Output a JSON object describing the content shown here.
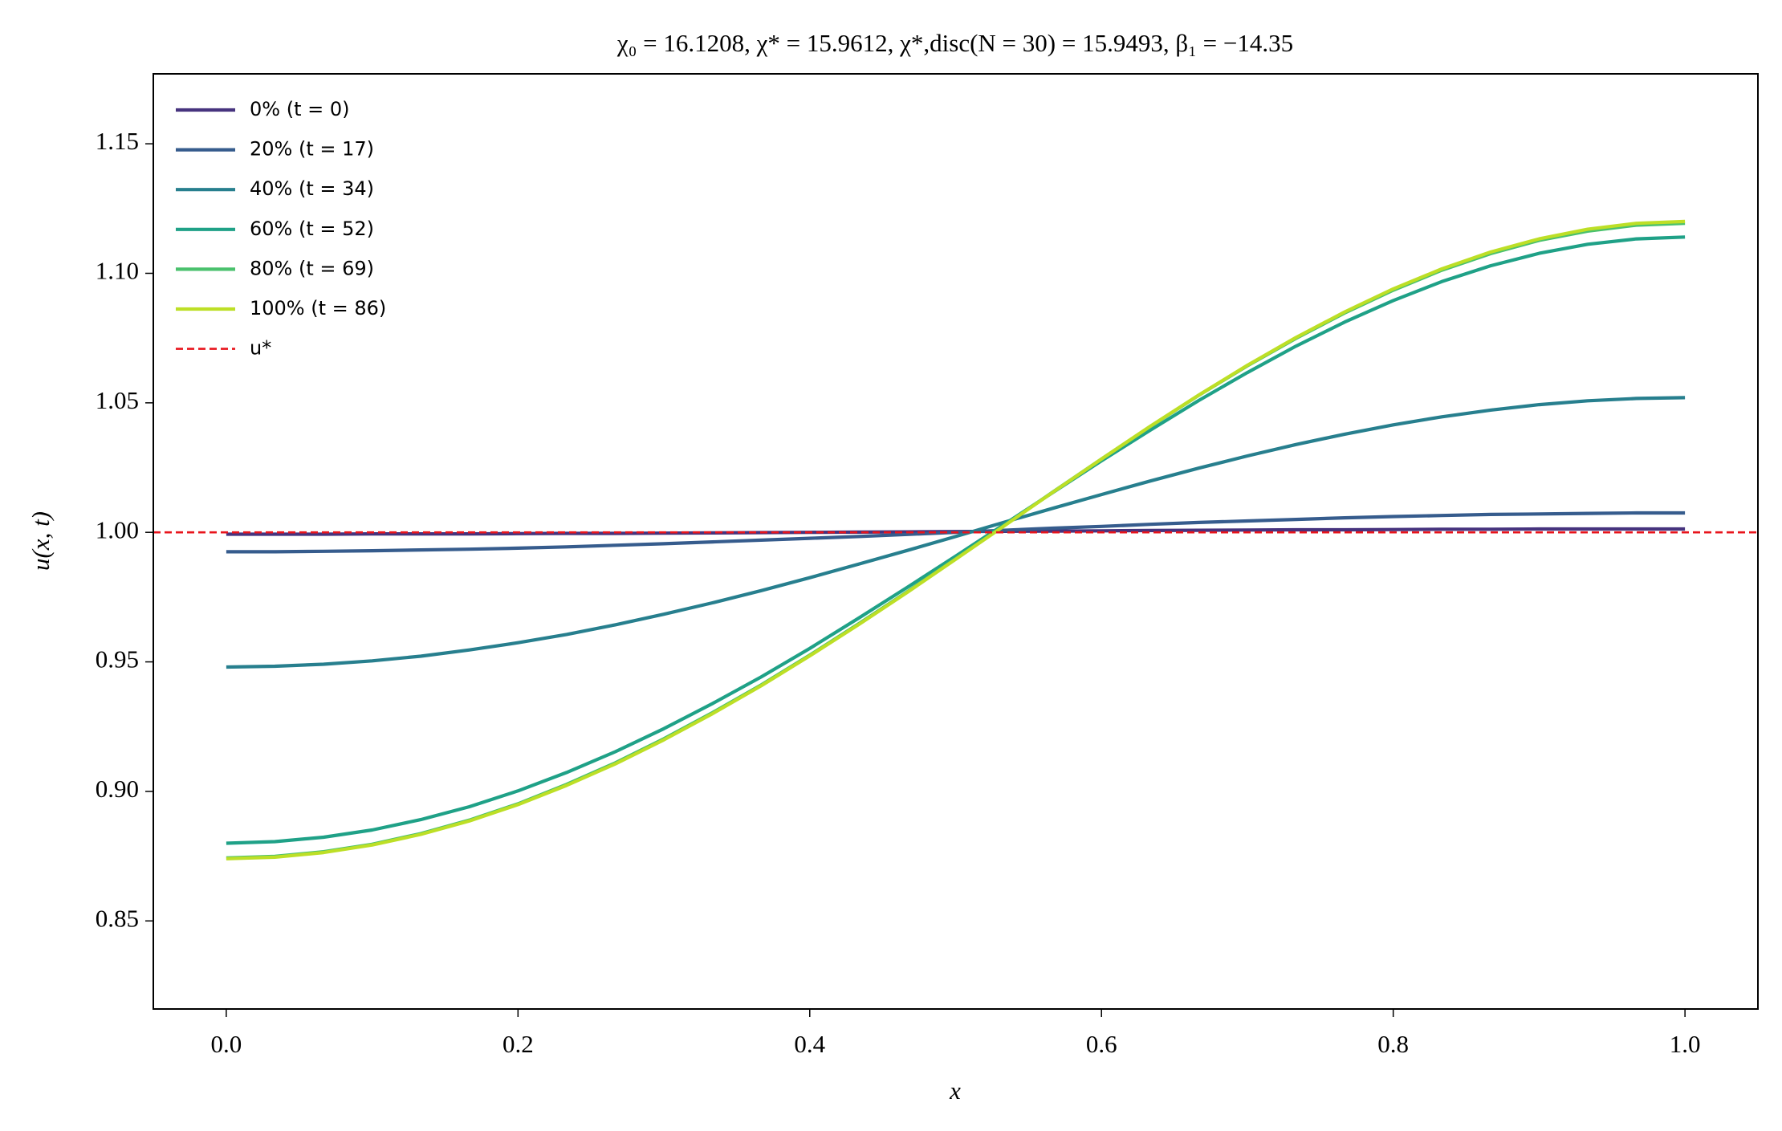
{
  "chart_data": {
    "type": "line",
    "title": "χ₀ = 16.1208,  χ* = 15.9612,  χ*,disc(N = 30) = 15.9493,  β₁ = −14.35",
    "x_label": "x",
    "y_label": "u(x, t)",
    "x": [
      0,
      0.0333,
      0.0667,
      0.1,
      0.1333,
      0.1667,
      0.2,
      0.2333,
      0.2667,
      0.3,
      0.3333,
      0.3667,
      0.4,
      0.4333,
      0.4667,
      0.5,
      0.5333,
      0.5667,
      0.6,
      0.6333,
      0.6667,
      0.7,
      0.7333,
      0.7667,
      0.8,
      0.8333,
      0.8667,
      0.9,
      0.9333,
      0.9667,
      1
    ],
    "series": [
      {
        "name": "0% (t = 0)",
        "color": "#46337e",
        "values": [
          0.9993,
          0.9993,
          0.9993,
          0.9994,
          0.9994,
          0.9994,
          0.9995,
          0.9996,
          0.9996,
          0.9997,
          0.9998,
          0.9999,
          1.0,
          1.0001,
          1.0002,
          1.0003,
          1.0004,
          1.0005,
          1.0006,
          1.0007,
          1.0008,
          1.0009,
          1.001,
          1.001,
          1.0011,
          1.0012,
          1.0012,
          1.0013,
          1.0013,
          1.0013,
          1.0013
        ]
      },
      {
        "name": "20% (t = 17)",
        "color": "#365c8d",
        "values": [
          0.9925,
          0.9925,
          0.9927,
          0.9929,
          0.9932,
          0.9935,
          0.9939,
          0.9944,
          0.995,
          0.9956,
          0.9963,
          0.997,
          0.9977,
          0.9984,
          0.9992,
          1.0,
          1.0008,
          1.0016,
          1.0023,
          1.0031,
          1.0038,
          1.0044,
          1.005,
          1.0056,
          1.0061,
          1.0065,
          1.0069,
          1.0071,
          1.0073,
          1.0075,
          1.0075
        ]
      },
      {
        "name": "40% (t = 34)",
        "color": "#277f8e",
        "values": [
          0.948,
          0.9483,
          0.9491,
          0.9504,
          0.9522,
          0.9546,
          0.9574,
          0.9606,
          0.9643,
          0.9684,
          0.9728,
          0.9775,
          0.9825,
          0.9877,
          0.993,
          0.9984,
          1.0039,
          1.0093,
          1.0146,
          1.0198,
          1.0248,
          1.0295,
          1.0339,
          1.0379,
          1.0415,
          1.0446,
          1.0472,
          1.0493,
          1.0508,
          1.0517,
          1.052
        ]
      },
      {
        "name": "60% (t = 52)",
        "color": "#1fa187",
        "values": [
          0.88,
          0.8806,
          0.8823,
          0.8851,
          0.8891,
          0.8941,
          0.9002,
          0.9073,
          0.9153,
          0.9242,
          0.9339,
          0.9442,
          0.9552,
          0.9668,
          0.9787,
          0.9908,
          1.0031,
          1.0154,
          1.0276,
          1.0394,
          1.0509,
          1.0617,
          1.0719,
          1.0812,
          1.0895,
          1.0968,
          1.1029,
          1.1077,
          1.1112,
          1.1133,
          1.114
        ]
      },
      {
        "name": "80% (t = 69)",
        "color": "#4ac16d",
        "values": [
          0.8743,
          0.8749,
          0.8767,
          0.8796,
          0.8837,
          0.8889,
          0.8952,
          0.9027,
          0.911,
          0.9203,
          0.9304,
          0.9411,
          0.9526,
          0.9646,
          0.977,
          0.9898,
          1.0026,
          1.0156,
          1.0283,
          1.0408,
          1.0529,
          1.0643,
          1.0749,
          1.0847,
          1.0935,
          1.1012,
          1.1076,
          1.1127,
          1.1163,
          1.1186,
          1.1193
        ]
      },
      {
        "name": "100% (t = 86)",
        "color": "#bddf26",
        "values": [
          0.874,
          0.8746,
          0.8764,
          0.8793,
          0.8834,
          0.8886,
          0.8949,
          0.9023,
          0.9106,
          0.9199,
          0.93,
          0.9408,
          0.9523,
          0.9643,
          0.9768,
          0.9896,
          1.0025,
          1.0155,
          1.0283,
          1.0409,
          1.053,
          1.0645,
          1.0752,
          1.0851,
          1.094,
          1.1017,
          1.1082,
          1.1133,
          1.117,
          1.1193,
          1.12
        ]
      }
    ],
    "reference_line": {
      "name": "u*",
      "y": 1,
      "color": "#e8141c"
    },
    "xlim": [
      -0.05,
      1.05
    ],
    "ylim": [
      0.816,
      1.177
    ],
    "xticks": [
      {
        "value": 0,
        "label": "0.0"
      },
      0.2,
      0.4,
      0.6,
      0.8,
      {
        "value": 1,
        "label": "1.0"
      }
    ],
    "yticks": [
      0.85,
      {
        "value": 0.9,
        "label": "0.90"
      },
      0.95,
      {
        "value": 1,
        "label": "1.00"
      },
      1.05,
      {
        "value": 1.1,
        "label": "1.10"
      },
      1.15
    ],
    "legend": "upper left",
    "grid": false
  }
}
